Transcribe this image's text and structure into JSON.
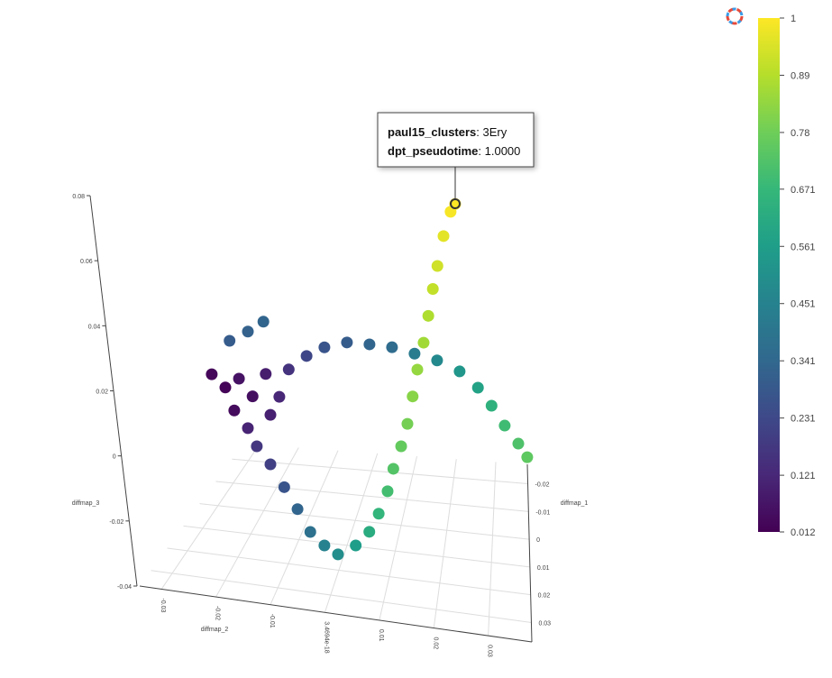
{
  "chart_data": {
    "type": "scatter3d",
    "xaxis_title": "diffmap_1",
    "yaxis_title": "diffmap_2",
    "zaxis_title": "diffmap_3",
    "xlim": [
      -0.027,
      0.037
    ],
    "ylim": [
      -0.034,
      0.038
    ],
    "zlim": [
      -0.04,
      0.08
    ],
    "xticks": [
      -0.02,
      -0.01,
      0,
      0.01,
      0.02,
      0.03
    ],
    "yticks": [
      -0.03,
      -0.02,
      -0.01,
      {
        "value": 0,
        "label": "3.4694e-18"
      },
      0.01,
      0.02,
      0.03
    ],
    "zticks": [
      -0.04,
      -0.02,
      0,
      0.02,
      0.04,
      0.06,
      0.08
    ],
    "grid": true,
    "x": [
      0.005,
      0.005,
      0.005,
      0.005,
      0.005,
      0.005,
      0.005,
      0.005,
      0.005,
      0.005,
      0.005,
      0.005,
      0.005,
      0.005,
      0.005,
      0.005,
      0.005,
      0.005,
      0.005,
      0.005,
      0.005,
      0.005,
      0.005,
      0.005,
      0.005,
      0.005,
      0.005,
      0.005,
      0.0146,
      0.0146,
      0.0274,
      0.0274,
      0.0274,
      0.0274,
      0.0274,
      0.0274,
      0.0274,
      0.0274,
      0.0274,
      0.0274,
      0.0274,
      0.0274,
      0.0274,
      0.0274,
      0.021,
      0.021,
      0.021,
      0.021,
      0.021
    ],
    "y": [
      -0.0297,
      -0.0268,
      -0.0239,
      -0.021,
      -0.0182,
      -0.0249,
      -0.0172,
      -0.0153,
      -0.022,
      -0.0133,
      -0.0259,
      -0.022,
      -0.0187,
      -0.0095,
      -0.0057,
      -0.0009,
      0.0039,
      0.0087,
      0.0135,
      0.0183,
      0.0231,
      0.027,
      0.0299,
      0.0327,
      0.0356,
      0.0375,
      -0.0201,
      -0.0172,
      -0.012,
      -0.0093,
      -0.0043,
      -0.0016,
      0.001,
      0.0044,
      0.007,
      0.0088,
      0.0105,
      0.0116,
      0.0131,
      0.0143,
      0.0153,
      0.0162,
      0.0174,
      0.0183,
      0.0187,
      0.0196,
      0.0208,
      0.0222,
      0.0231
    ],
    "z": [
      0.0042,
      0.0006,
      0.0038,
      -0.0012,
      0.0062,
      -0.0062,
      -0.0063,
      -0.0004,
      -0.0112,
      0.0084,
      0.0152,
      0.0187,
      0.0223,
      0.0132,
      0.0165,
      0.0188,
      0.019,
      0.0189,
      0.0177,
      0.0164,
      0.0138,
      0.0094,
      0.0043,
      -0.0014,
      -0.0065,
      -0.0104,
      -0.0165,
      -0.0216,
      -0.0207,
      -0.027,
      -0.0234,
      -0.027,
      -0.0292,
      -0.0257,
      -0.0209,
      -0.0149,
      -0.0076,
      -0.0004,
      0.0069,
      0.0141,
      0.0228,
      0.0313,
      0.0399,
      0.0484,
      0.0516,
      0.0589,
      0.0684,
      0.0762,
      0.0788
    ],
    "color_values": [
      0.03,
      0.02,
      0.06,
      0.05,
      0.09,
      0.04,
      0.1,
      0.12,
      0.11,
      0.16,
      0.3,
      0.32,
      0.33,
      0.22,
      0.27,
      0.3,
      0.33,
      0.36,
      0.42,
      0.48,
      0.53,
      0.58,
      0.64,
      0.69,
      0.72,
      0.75,
      0.17,
      0.2,
      0.27,
      0.33,
      0.38,
      0.45,
      0.5,
      0.56,
      0.62,
      0.66,
      0.7,
      0.73,
      0.76,
      0.79,
      0.82,
      0.84,
      0.86,
      0.88,
      0.91,
      0.93,
      0.96,
      0.99,
      1
    ],
    "clim": [
      0.012,
      1
    ],
    "cticks": [
      0.012,
      0.121,
      0.231,
      0.341,
      0.451,
      0.561,
      0.671,
      0.78,
      0.89,
      1
    ],
    "colorscale": [
      [
        0,
        "#440154"
      ],
      [
        0.1111,
        "#482878"
      ],
      [
        0.2222,
        "#3e4989"
      ],
      [
        0.3333,
        "#31688e"
      ],
      [
        0.4444,
        "#26828e"
      ],
      [
        0.5556,
        "#1f9e89"
      ],
      [
        0.6667,
        "#35b779"
      ],
      [
        0.7778,
        "#6ece58"
      ],
      [
        0.8889,
        "#b5de2b"
      ],
      [
        1,
        "#fde725"
      ]
    ],
    "hover": [
      {
        "name": "paul15_clusters",
        "text": ": 3Ery"
      },
      {
        "name": "dpt_pseudotime",
        "text": ": 1.0000"
      }
    ]
  }
}
